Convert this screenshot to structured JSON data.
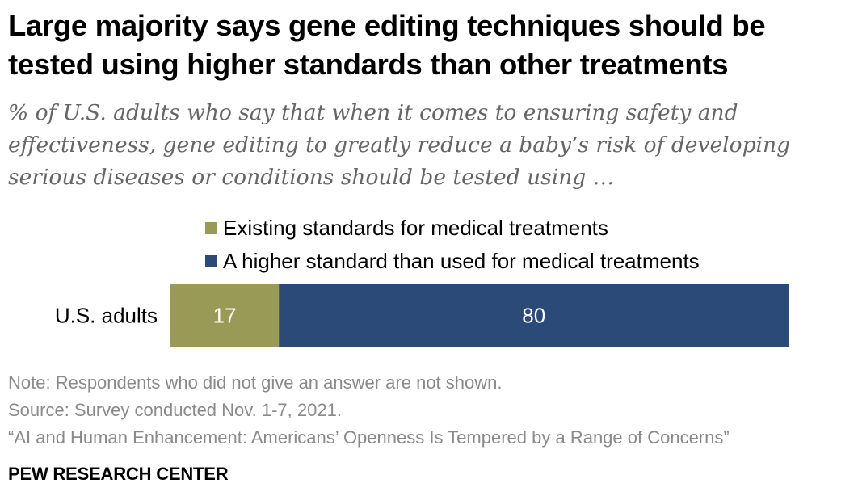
{
  "title": "Large majority says gene editing techniques should be tested using higher standards than other treatments",
  "subtitle": "% of U.S. adults who say that when it comes to ensuring safety and effectiveness, gene editing to greatly reduce a baby’s risk of developing serious diseases or conditions should be tested using …",
  "chart_data": {
    "type": "bar",
    "orientation": "horizontal",
    "stacked": true,
    "categories": [
      "U.S. adults"
    ],
    "series": [
      {
        "name": "Existing standards for medical treatments",
        "values": [
          17
        ],
        "color": "#9a9a57"
      },
      {
        "name": "A higher standard than used for medical treatments",
        "values": [
          80
        ],
        "color": "#2b4a78"
      }
    ],
    "data_labels": [
      "17",
      "80"
    ],
    "xlim": [
      0,
      100
    ],
    "legend_placement": "top",
    "grid": false
  },
  "notes": {
    "note": "Note: Respondents who did not give an answer are not shown.",
    "source": "Source: Survey conducted Nov. 1-7, 2021.",
    "report": "“AI and Human Enhancement: Americans’ Openness Is Tempered by a Range of Concerns”"
  },
  "brand": "PEW RESEARCH CENTER"
}
